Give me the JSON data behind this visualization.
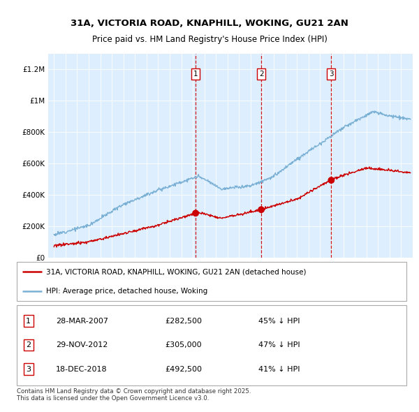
{
  "title1": "31A, VICTORIA ROAD, KNAPHILL, WOKING, GU21 2AN",
  "title2": "Price paid vs. HM Land Registry's House Price Index (HPI)",
  "legend_property": "31A, VICTORIA ROAD, KNAPHILL, WOKING, GU21 2AN (detached house)",
  "legend_hpi": "HPI: Average price, detached house, Woking",
  "footnote": "Contains HM Land Registry data © Crown copyright and database right 2025.\nThis data is licensed under the Open Government Licence v3.0.",
  "sale_labels": [
    {
      "num": "1",
      "date": "28-MAR-2007",
      "price": "£282,500",
      "pct": "45% ↓ HPI"
    },
    {
      "num": "2",
      "date": "29-NOV-2012",
      "price": "£305,000",
      "pct": "47% ↓ HPI"
    },
    {
      "num": "3",
      "date": "18-DEC-2018",
      "price": "£492,500",
      "pct": "41% ↓ HPI"
    }
  ],
  "sale_dates": [
    2007.24,
    2012.91,
    2018.96
  ],
  "sale_prices": [
    282500,
    305000,
    492500
  ],
  "property_color": "#cc0000",
  "hpi_color": "#7ab0d4",
  "vline_color": "#cc0000",
  "background_color": "#ddeeff",
  "ylim_max": 1300000,
  "xlim_start": 1994.5,
  "xlim_end": 2026.0
}
